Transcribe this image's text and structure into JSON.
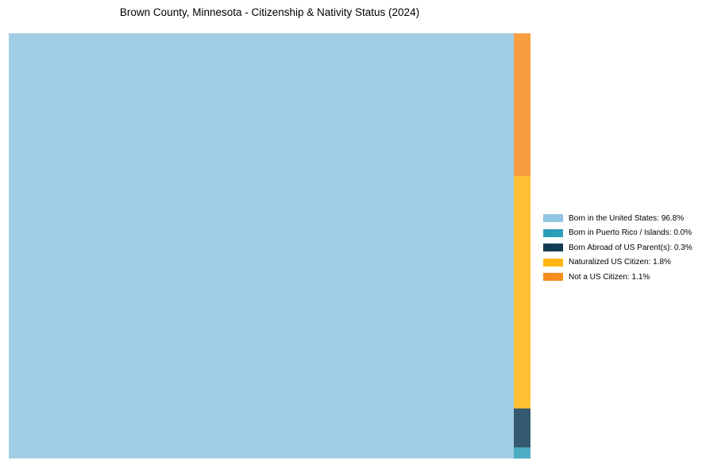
{
  "chart_data": {
    "type": "treemap",
    "title": "Brown County, Minnesota - Citizenship & Nativity Status (2024)",
    "slices": [
      {
        "label": "Born in the United States",
        "value": 96.8,
        "display": "96.8%",
        "color": "#92C5E0"
      },
      {
        "label": "Born in Puerto Rico / Islands",
        "value": 0.0,
        "display": "0.0%",
        "color": "#2B9EB8"
      },
      {
        "label": "Born Abroad of US Parent(s)",
        "value": 0.3,
        "display": "0.3%",
        "color": "#123C55"
      },
      {
        "label": "Naturalized US Citizen",
        "value": 1.8,
        "display": "1.8%",
        "color": "#FFB511"
      },
      {
        "label": "Not a US Citizen",
        "value": 1.1,
        "display": "1.1%",
        "color": "#F68D1E"
      }
    ],
    "layout": {
      "main_cell_position": "left",
      "strip_position": "right",
      "strip_order_top_to_bottom": [
        "Not a US Citizen",
        "Naturalized US Citizen",
        "Born Abroad of US Parent(s)",
        "Born in Puerto Rico / Islands"
      ],
      "min_segment_fraction": 0.026,
      "cell_opacity": 0.85,
      "legend_position": "right-center",
      "grid": false,
      "axes": false
    }
  }
}
